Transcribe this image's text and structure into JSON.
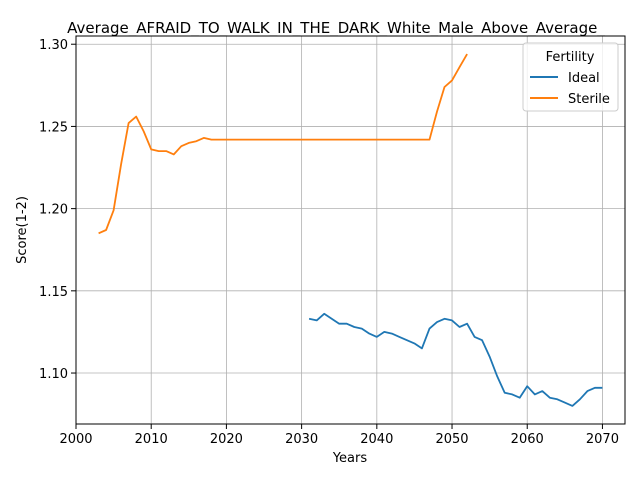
{
  "chart_data": {
    "type": "line",
    "title": "Average_AFRAID_TO_WALK_IN_THE_DARK_White_Male_Above_Average_",
    "xlabel": "Years",
    "ylabel": "Score(1-2)",
    "xlim": [
      2000,
      2073
    ],
    "ylim": [
      1.069,
      1.305
    ],
    "xticks": [
      2000,
      2010,
      2020,
      2030,
      2040,
      2050,
      2060,
      2070
    ],
    "yticks": [
      1.1,
      1.15,
      1.2,
      1.25,
      1.3
    ],
    "ytick_labels": [
      "1.10",
      "1.15",
      "1.20",
      "1.25",
      "1.30"
    ],
    "grid": true,
    "legend": {
      "title": "Fertility",
      "placement": "top-right"
    },
    "series": [
      {
        "name": "Ideal",
        "color": "#1f77b4",
        "x": [
          2031,
          2032,
          2033,
          2034,
          2035,
          2036,
          2037,
          2038,
          2039,
          2040,
          2041,
          2042,
          2043,
          2044,
          2045,
          2046,
          2047,
          2048,
          2049,
          2050,
          2051,
          2052,
          2053,
          2054,
          2055,
          2056,
          2057,
          2058,
          2059,
          2060,
          2061,
          2062,
          2063,
          2064,
          2065,
          2066,
          2067,
          2068,
          2069,
          2070
        ],
        "y": [
          1.133,
          1.132,
          1.136,
          1.133,
          1.13,
          1.13,
          1.128,
          1.127,
          1.124,
          1.122,
          1.125,
          1.124,
          1.122,
          1.12,
          1.118,
          1.115,
          1.127,
          1.131,
          1.133,
          1.132,
          1.128,
          1.13,
          1.122,
          1.12,
          1.11,
          1.098,
          1.088,
          1.087,
          1.085,
          1.092,
          1.087,
          1.089,
          1.085,
          1.084,
          1.082,
          1.08,
          1.084,
          1.089,
          1.091,
          1.091
        ]
      },
      {
        "name": "Sterile",
        "color": "#ff7f0e",
        "x": [
          2003,
          2004,
          2005,
          2006,
          2007,
          2008,
          2009,
          2010,
          2011,
          2012,
          2013,
          2014,
          2015,
          2016,
          2017,
          2018,
          2019,
          2020,
          2021,
          2022,
          2023,
          2024,
          2025,
          2026,
          2027,
          2028,
          2029,
          2030,
          2031,
          2032,
          2033,
          2034,
          2035,
          2036,
          2037,
          2038,
          2039,
          2040,
          2041,
          2042,
          2043,
          2044,
          2045,
          2046,
          2047,
          2048,
          2049,
          2050,
          2051,
          2052
        ],
        "y": [
          1.185,
          1.187,
          1.199,
          1.227,
          1.252,
          1.256,
          1.247,
          1.236,
          1.235,
          1.235,
          1.233,
          1.238,
          1.24,
          1.241,
          1.243,
          1.242,
          1.242,
          1.242,
          1.242,
          1.242,
          1.242,
          1.242,
          1.242,
          1.242,
          1.242,
          1.242,
          1.242,
          1.242,
          1.242,
          1.242,
          1.242,
          1.242,
          1.242,
          1.242,
          1.242,
          1.242,
          1.242,
          1.242,
          1.242,
          1.242,
          1.242,
          1.242,
          1.242,
          1.242,
          1.242,
          1.259,
          1.274,
          1.278,
          1.286,
          1.294
        ]
      }
    ]
  }
}
